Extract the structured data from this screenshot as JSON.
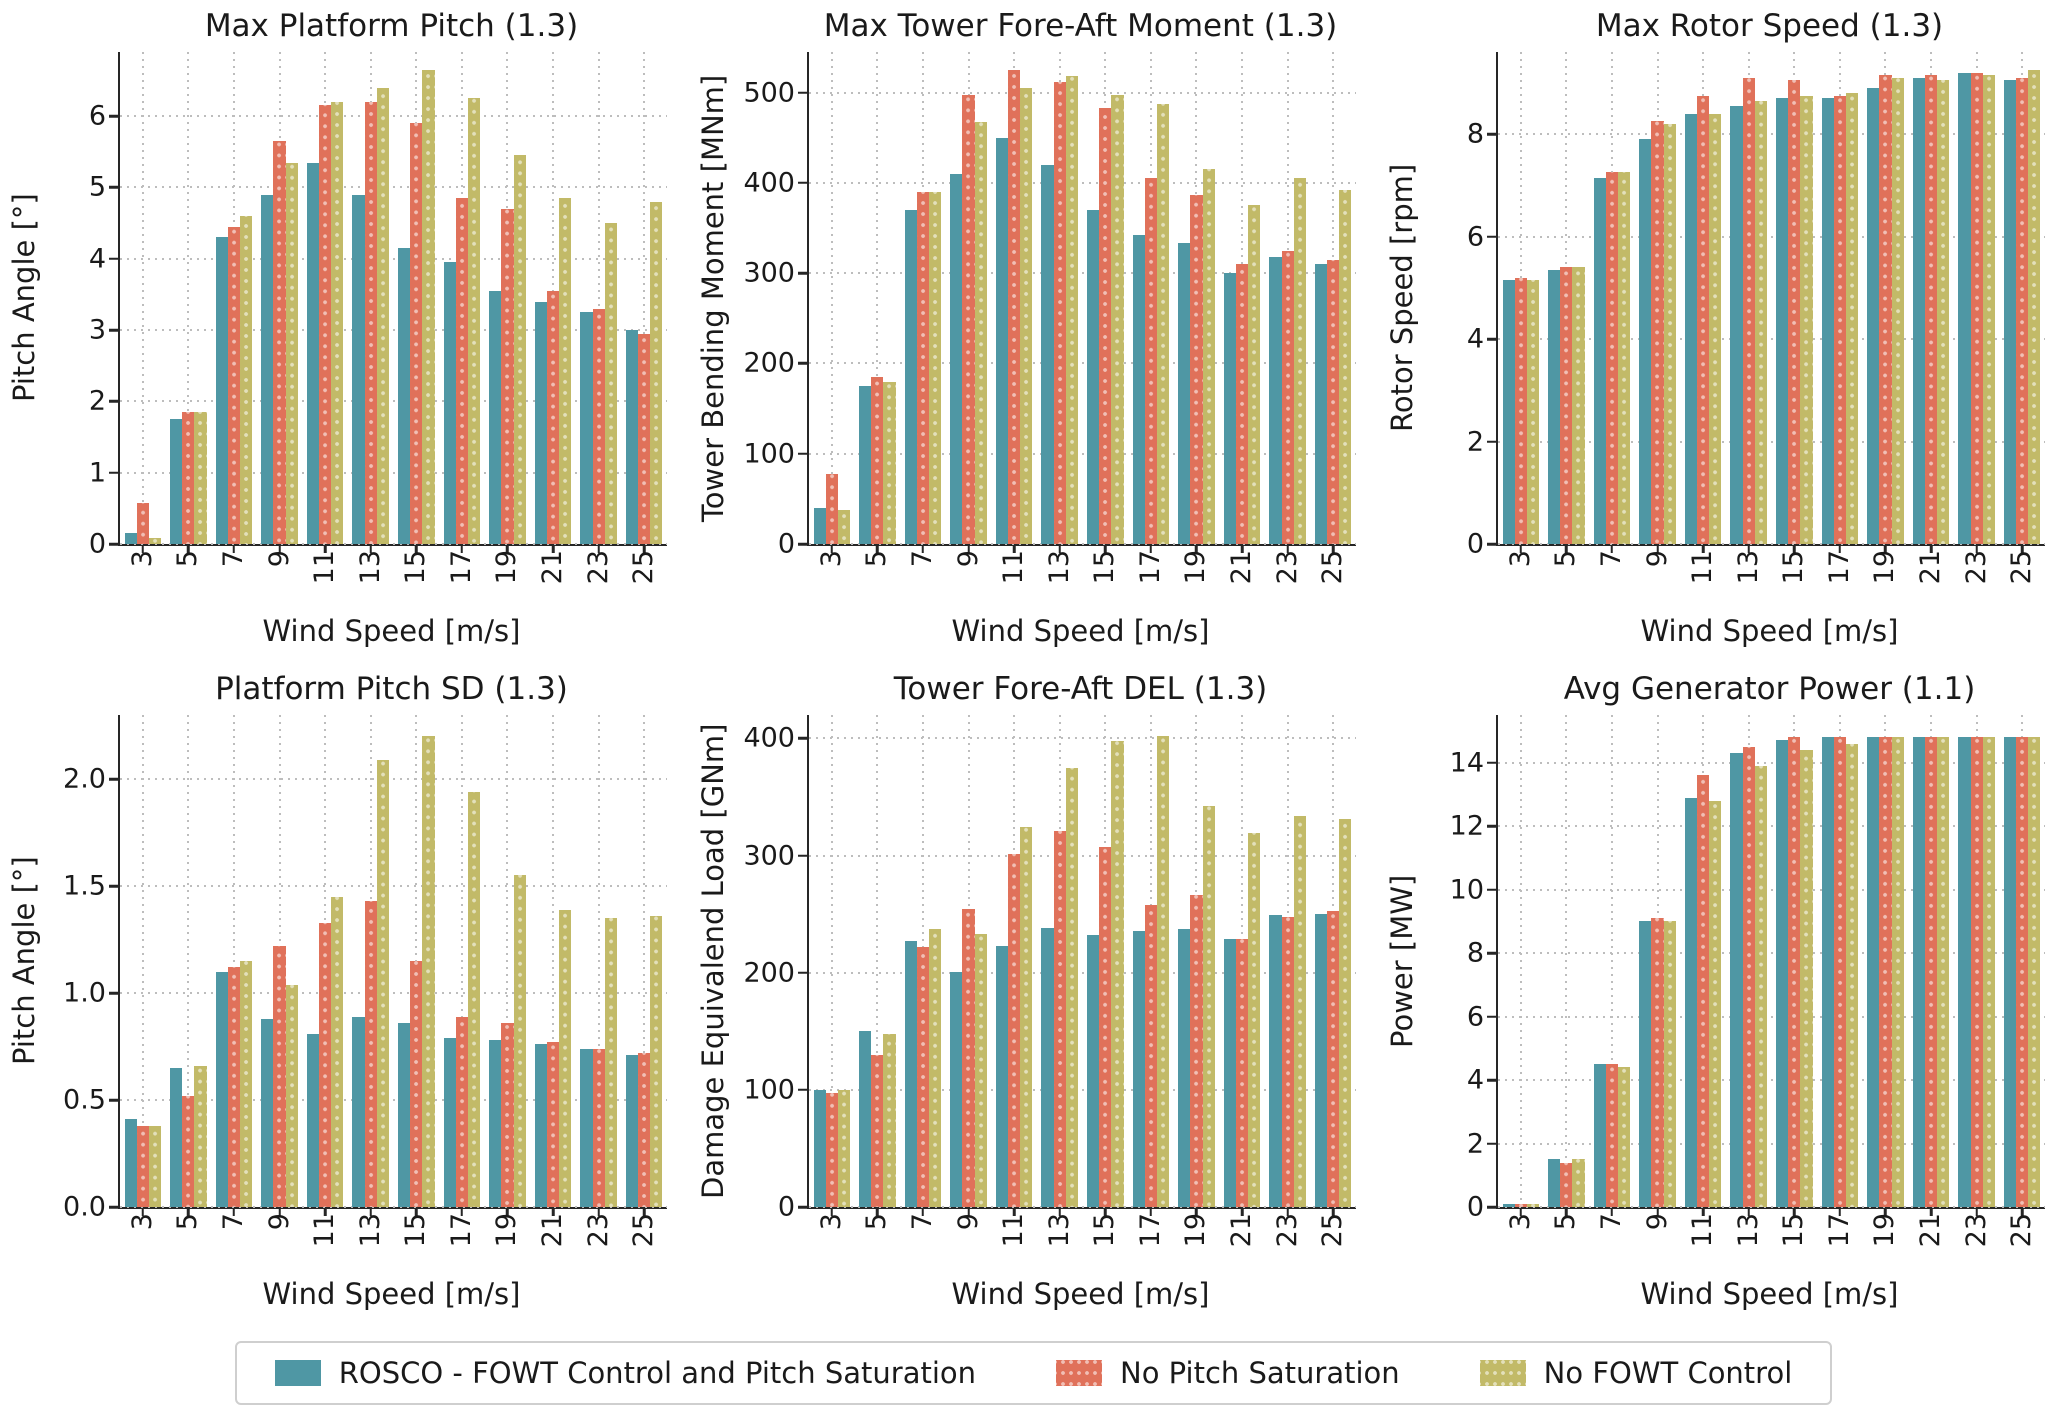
{
  "figure": {
    "background": "#ffffff",
    "text_color": "#1a1a1a",
    "grid_color": "#bdbdbd",
    "axis_color": "#262626"
  },
  "legend": {
    "items": [
      {
        "label": "ROSCO - FOWT Control and Pitch Saturation",
        "color": "#4F97A4",
        "hatch": false
      },
      {
        "label": "No Pitch Saturation",
        "color": "#E0715A",
        "hatch": true
      },
      {
        "label": "No FOWT Control",
        "color": "#C2BA68",
        "hatch": true
      }
    ]
  },
  "chart_data": [
    {
      "type": "bar",
      "title": "Max Platform Pitch (1.3)",
      "xlabel": "Wind Speed [m/s]",
      "ylabel": "Pitch Angle [°]",
      "categories": [
        "3",
        "5",
        "7",
        "9",
        "11",
        "13",
        "15",
        "17",
        "19",
        "21",
        "23",
        "25"
      ],
      "ylim": [
        0,
        6.9
      ],
      "yticks": [
        0,
        1,
        2,
        3,
        4,
        5,
        6
      ],
      "ytick_labels": [
        "0",
        "1",
        "2",
        "3",
        "4",
        "5",
        "6"
      ],
      "grid": true,
      "legend_position": "figure-bottom",
      "series": [
        {
          "name": "ROSCO - FOWT Control and Pitch Saturation",
          "values": [
            0.15,
            1.75,
            4.3,
            4.9,
            5.35,
            4.9,
            4.15,
            3.95,
            3.55,
            3.4,
            3.25,
            3.0
          ]
        },
        {
          "name": "No Pitch Saturation",
          "values": [
            0.58,
            1.85,
            4.45,
            5.65,
            6.15,
            6.2,
            5.9,
            4.85,
            4.7,
            3.55,
            3.3,
            2.95
          ]
        },
        {
          "name": "No FOWT Control",
          "values": [
            0.08,
            1.85,
            4.6,
            5.35,
            6.2,
            6.4,
            6.65,
            6.25,
            5.45,
            4.85,
            4.5,
            4.8
          ]
        }
      ]
    },
    {
      "type": "bar",
      "title": "Max Tower Fore-Aft Moment (1.3)",
      "xlabel": "Wind Speed [m/s]",
      "ylabel": "Tower Bending Moment [MNm]",
      "categories": [
        "3",
        "5",
        "7",
        "9",
        "11",
        "13",
        "15",
        "17",
        "19",
        "21",
        "23",
        "25"
      ],
      "ylim": [
        0,
        545
      ],
      "yticks": [
        0,
        100,
        200,
        300,
        400,
        500
      ],
      "ytick_labels": [
        "0",
        "100",
        "200",
        "300",
        "400",
        "500"
      ],
      "grid": true,
      "legend_position": "figure-bottom",
      "series": [
        {
          "name": "ROSCO - FOWT Control and Pitch Saturation",
          "values": [
            40,
            175,
            370,
            410,
            450,
            420,
            370,
            342,
            333,
            300,
            318,
            310
          ]
        },
        {
          "name": "No Pitch Saturation",
          "values": [
            78,
            185,
            390,
            497,
            525,
            512,
            483,
            405,
            387,
            310,
            325,
            315
          ]
        },
        {
          "name": "No FOWT Control",
          "values": [
            38,
            180,
            390,
            468,
            505,
            518,
            497,
            487,
            415,
            375,
            405,
            392
          ]
        }
      ]
    },
    {
      "type": "bar",
      "title": "Max Rotor Speed (1.3)",
      "xlabel": "Wind Speed [m/s]",
      "ylabel": "Rotor Speed [rpm]",
      "categories": [
        "3",
        "5",
        "7",
        "9",
        "11",
        "13",
        "15",
        "17",
        "19",
        "21",
        "23",
        "25"
      ],
      "ylim": [
        0,
        9.6
      ],
      "yticks": [
        0,
        2,
        4,
        6,
        8
      ],
      "ytick_labels": [
        "0",
        "2",
        "4",
        "6",
        "8"
      ],
      "grid": true,
      "legend_position": "figure-bottom",
      "series": [
        {
          "name": "ROSCO - FOWT Control and Pitch Saturation",
          "values": [
            5.15,
            5.35,
            7.15,
            7.9,
            8.4,
            8.55,
            8.7,
            8.7,
            8.9,
            9.1,
            9.2,
            9.05
          ]
        },
        {
          "name": "No Pitch Saturation",
          "values": [
            5.2,
            5.4,
            7.25,
            8.25,
            8.75,
            9.1,
            9.05,
            8.75,
            9.15,
            9.15,
            9.2,
            9.1
          ]
        },
        {
          "name": "No FOWT Control",
          "values": [
            5.15,
            5.4,
            7.25,
            8.2,
            8.4,
            8.65,
            8.75,
            8.8,
            9.1,
            9.05,
            9.15,
            9.25
          ]
        }
      ]
    },
    {
      "type": "bar",
      "title": "Platform Pitch SD (1.3)",
      "xlabel": "Wind Speed [m/s]",
      "ylabel": "Pitch Angle [°]",
      "categories": [
        "3",
        "5",
        "7",
        "9",
        "11",
        "13",
        "15",
        "17",
        "19",
        "21",
        "23",
        "25"
      ],
      "ylim": [
        0,
        2.3
      ],
      "yticks": [
        0,
        0.5,
        1.0,
        1.5,
        2.0
      ],
      "ytick_labels": [
        "0.0",
        "0.5",
        "1.0",
        "1.5",
        "2.0"
      ],
      "grid": true,
      "legend_position": "figure-bottom",
      "series": [
        {
          "name": "ROSCO - FOWT Control and Pitch Saturation",
          "values": [
            0.41,
            0.65,
            1.1,
            0.88,
            0.81,
            0.89,
            0.86,
            0.79,
            0.78,
            0.76,
            0.74,
            0.71
          ]
        },
        {
          "name": "No Pitch Saturation",
          "values": [
            0.38,
            0.52,
            1.12,
            1.22,
            1.33,
            1.43,
            1.15,
            0.89,
            0.86,
            0.77,
            0.74,
            0.72
          ]
        },
        {
          "name": "No FOWT Control",
          "values": [
            0.38,
            0.66,
            1.15,
            1.04,
            1.45,
            2.09,
            2.2,
            1.94,
            1.55,
            1.39,
            1.35,
            1.36
          ]
        }
      ]
    },
    {
      "type": "bar",
      "title": "Tower Fore-Aft DEL (1.3)",
      "xlabel": "Wind Speed [m/s]",
      "ylabel": "Damage Equivalend Load [GNm]",
      "categories": [
        "3",
        "5",
        "7",
        "9",
        "11",
        "13",
        "15",
        "17",
        "19",
        "21",
        "23",
        "25"
      ],
      "ylim": [
        0,
        420
      ],
      "yticks": [
        0,
        100,
        200,
        300,
        400
      ],
      "ytick_labels": [
        "0",
        "100",
        "200",
        "300",
        "400"
      ],
      "grid": true,
      "legend_position": "figure-bottom",
      "series": [
        {
          "name": "ROSCO - FOWT Control and Pitch Saturation",
          "values": [
            100,
            150,
            227,
            201,
            223,
            238,
            232,
            236,
            237,
            229,
            249,
            250
          ]
        },
        {
          "name": "No Pitch Saturation",
          "values": [
            97,
            130,
            222,
            254,
            301,
            321,
            307,
            258,
            266,
            229,
            248,
            253
          ]
        },
        {
          "name": "No FOWT Control",
          "values": [
            100,
            148,
            237,
            233,
            324,
            375,
            398,
            402,
            342,
            319,
            334,
            331
          ]
        }
      ]
    },
    {
      "type": "bar",
      "title": "Avg Generator Power (1.1)",
      "xlabel": "Wind Speed [m/s]",
      "ylabel": "Power [MW]",
      "categories": [
        "3",
        "5",
        "7",
        "9",
        "11",
        "13",
        "15",
        "17",
        "19",
        "21",
        "23",
        "25"
      ],
      "ylim": [
        0,
        15.5
      ],
      "yticks": [
        0,
        2,
        4,
        6,
        8,
        10,
        12,
        14
      ],
      "ytick_labels": [
        "0",
        "2",
        "4",
        "6",
        "8",
        "10",
        "12",
        "14"
      ],
      "grid": true,
      "legend_position": "figure-bottom",
      "series": [
        {
          "name": "ROSCO - FOWT Control and Pitch Saturation",
          "values": [
            0.1,
            1.5,
            4.5,
            9.0,
            12.9,
            14.3,
            14.7,
            14.8,
            14.8,
            14.8,
            14.8,
            14.8
          ]
        },
        {
          "name": "No Pitch Saturation",
          "values": [
            0.1,
            1.4,
            4.5,
            9.1,
            13.6,
            14.5,
            14.8,
            14.8,
            14.8,
            14.8,
            14.8,
            14.8
          ]
        },
        {
          "name": "No FOWT Control",
          "values": [
            0.1,
            1.5,
            4.4,
            9.0,
            12.8,
            13.9,
            14.4,
            14.6,
            14.8,
            14.8,
            14.8,
            14.8
          ]
        }
      ]
    }
  ]
}
